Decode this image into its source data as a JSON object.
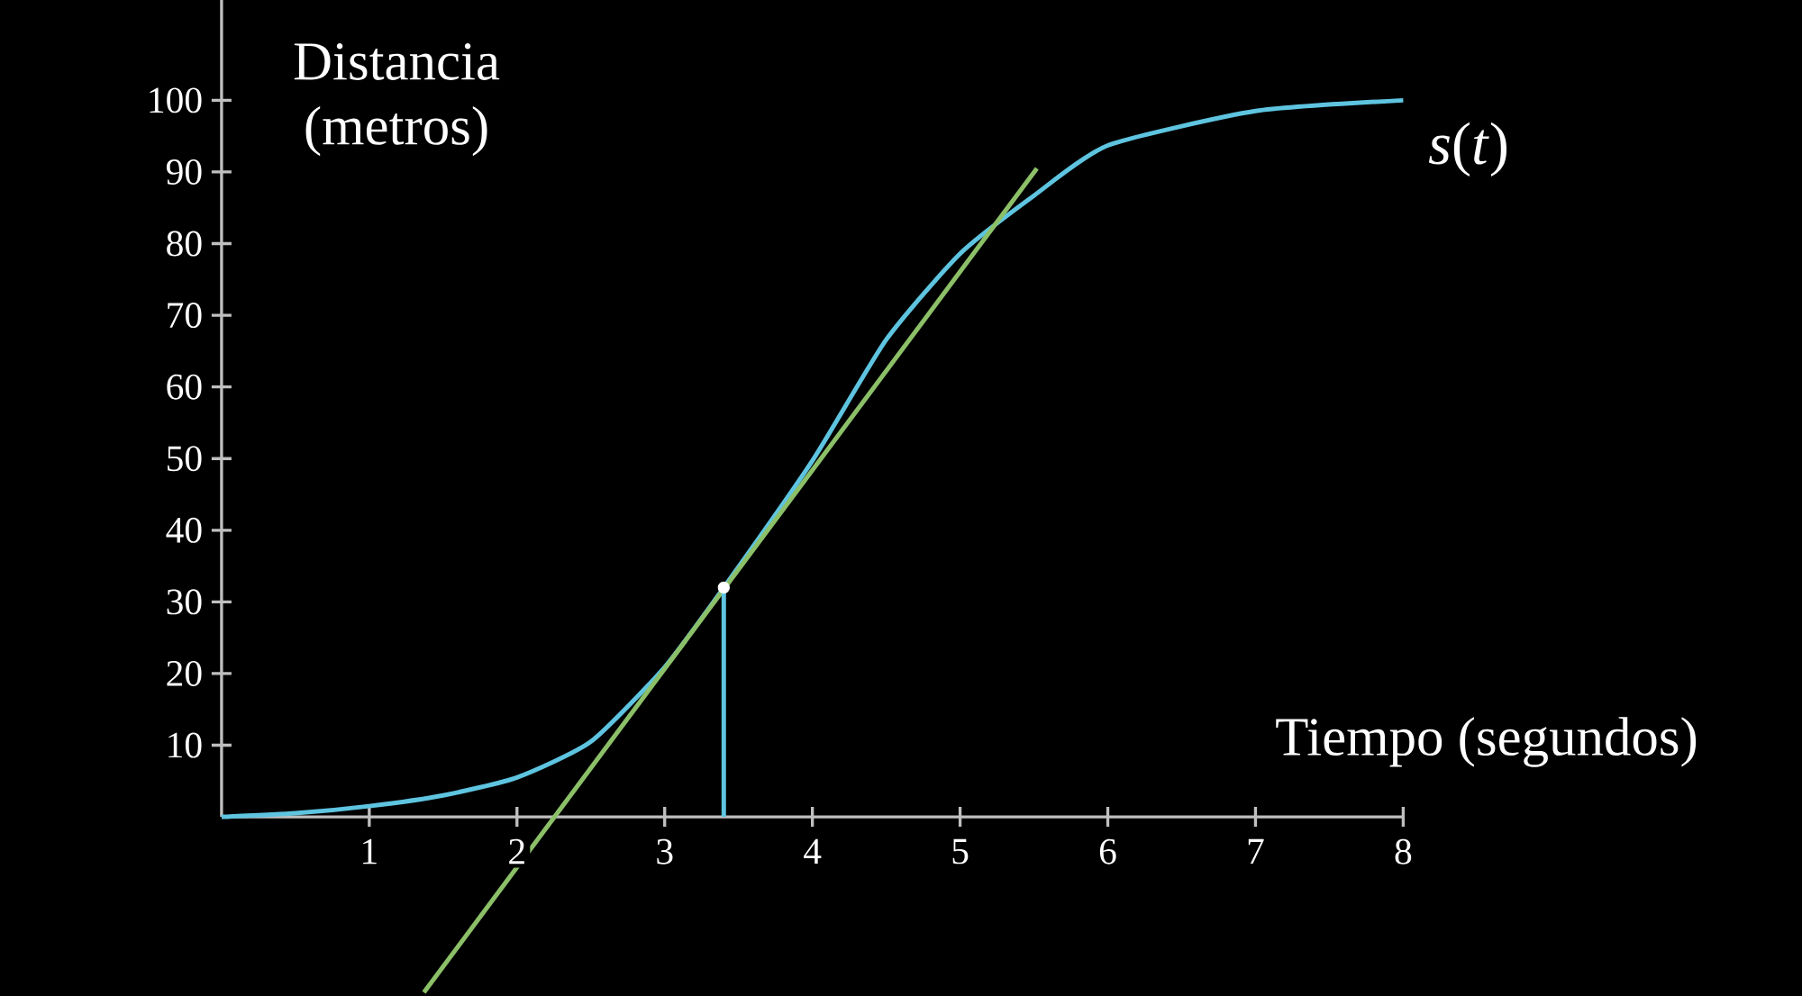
{
  "chart_data": {
    "type": "line",
    "xlabel": "Tiempo (segundos)",
    "ylabel": "Distancia (metros)",
    "xlim": [
      -1.5,
      10.7
    ],
    "ylim": [
      -25,
      114
    ],
    "xticks": [
      1,
      2,
      3,
      4,
      5,
      6,
      7,
      8
    ],
    "yticks": [
      10,
      20,
      30,
      40,
      50,
      60,
      70,
      80,
      90,
      100
    ],
    "legend": false,
    "grid": false,
    "series": [
      {
        "name": "*s*(*t*)",
        "color": "#5ec4e0",
        "x": [
          0,
          0.5,
          1,
          1.5,
          2,
          2.5,
          3,
          3.4,
          4,
          4.5,
          5,
          5.5,
          6,
          7,
          8
        ],
        "values": [
          0,
          0.5,
          1.5,
          3,
          5.5,
          10.5,
          20.9,
          32,
          49.7,
          66.6,
          78.6,
          86.7,
          93.7,
          98.5,
          100
        ]
      },
      {
        "type": "line",
        "color": "#8cc068",
        "x": [
          1.37,
          5.52
        ],
        "values": [
          -24.5,
          90.5
        ]
      },
      {
        "type": "line",
        "color": "#5ec4e0",
        "x": [
          3.4,
          3.4
        ],
        "values": [
          0,
          32
        ]
      },
      {
        "type": "scatter",
        "color": "#ffffff",
        "marker": "circle",
        "x": [
          3.4
        ],
        "values": [
          32
        ]
      }
    ]
  }
}
